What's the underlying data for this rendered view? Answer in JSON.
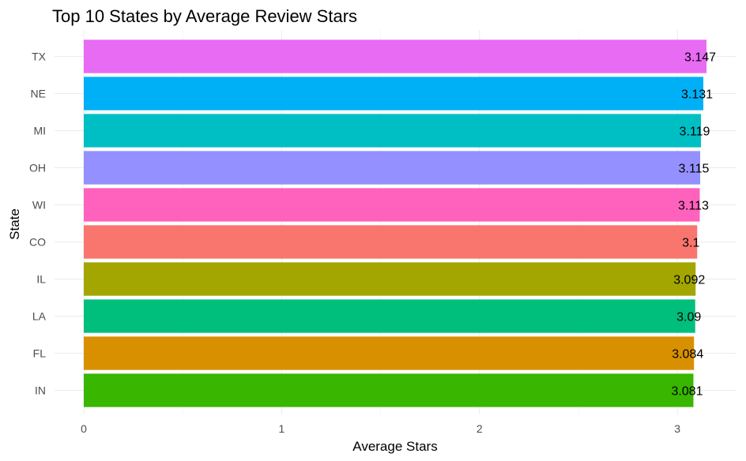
{
  "chart_data": {
    "type": "bar",
    "orientation": "horizontal",
    "title": "Top 10 States by Average Review Stars",
    "xlabel": "Average Stars",
    "ylabel": "State",
    "xlim": [
      0,
      3.147
    ],
    "x_ticks": [
      "0",
      "1",
      "2",
      "3"
    ],
    "grid": true,
    "legend": "none",
    "categories": [
      "TX",
      "NE",
      "MI",
      "OH",
      "WI",
      "CO",
      "IL",
      "LA",
      "FL",
      "IN"
    ],
    "values": [
      3.147,
      3.131,
      3.119,
      3.115,
      3.113,
      3.1,
      3.092,
      3.09,
      3.084,
      3.081
    ],
    "data_labels": [
      "3.147",
      "3.131",
      "3.119",
      "3.115",
      "3.113",
      "3.1",
      "3.092",
      "3.09",
      "3.084",
      "3.081"
    ],
    "colors": [
      "#E76BF3",
      "#00B0F6",
      "#00BFC4",
      "#9590FF",
      "#FF62BC",
      "#F8766D",
      "#A3A500",
      "#00BF7D",
      "#D89000",
      "#39B600"
    ]
  }
}
